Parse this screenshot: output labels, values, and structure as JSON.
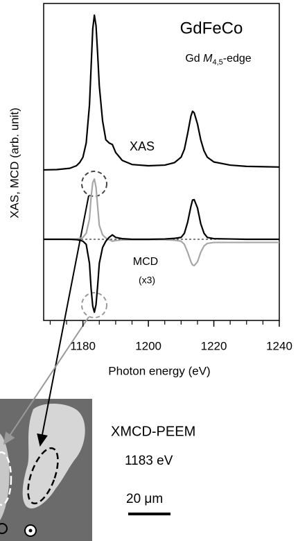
{
  "chart_data": {
    "type": "line",
    "title": "GdFeCo",
    "edge_label": {
      "element": "Gd ",
      "symbol": "M",
      "subscript": "4,5",
      "suffix": "-edge"
    },
    "annotations": [
      "XAS",
      "MCD",
      "(x3)"
    ],
    "xlabel": "Photon energy (eV)",
    "ylabel": "XAS, MCD (arb. unit)",
    "xlim": [
      1168,
      1240
    ],
    "xticks": [
      1180,
      1200,
      1220,
      1240
    ],
    "xminor_ticks": [
      1170,
      1175,
      1185,
      1190,
      1195,
      1205,
      1210,
      1215,
      1225,
      1230,
      1235
    ],
    "ylim": [
      0,
      10
    ],
    "mcd_zero_line": 2.56,
    "x": [
      1168,
      1172,
      1176,
      1178,
      1179,
      1180,
      1181,
      1182,
      1182.5,
      1183,
      1183.5,
      1184,
      1184.5,
      1185,
      1186,
      1187,
      1188,
      1189,
      1190,
      1192,
      1195,
      1200,
      1205,
      1208,
      1210,
      1211,
      1212,
      1213,
      1213.5,
      1214,
      1215,
      1216,
      1217,
      1218,
      1220,
      1225,
      1230,
      1240
    ],
    "series": [
      {
        "color": "#000000",
        "values": [
          4.75,
          4.76,
          4.8,
          4.88,
          4.98,
          5.15,
          5.6,
          6.8,
          8.0,
          9.2,
          9.63,
          9.3,
          8.4,
          7.4,
          6.3,
          5.7,
          5.6,
          5.55,
          5.3,
          5.05,
          4.92,
          4.88,
          4.9,
          4.98,
          5.15,
          5.4,
          5.9,
          6.45,
          6.6,
          6.55,
          6.2,
          5.7,
          5.35,
          5.15,
          5.0,
          4.9,
          4.86,
          4.84
        ]
      },
      {
        "color": "#a6a6a6",
        "values": [
          2.56,
          2.56,
          2.56,
          2.57,
          2.59,
          2.62,
          2.75,
          3.2,
          3.9,
          4.35,
          4.46,
          4.2,
          3.6,
          3.0,
          2.7,
          2.6,
          2.55,
          2.5,
          2.52,
          2.54,
          2.55,
          2.55,
          2.55,
          2.53,
          2.5,
          2.4,
          2.15,
          1.85,
          1.75,
          1.73,
          1.85,
          2.15,
          2.35,
          2.43,
          2.46,
          2.46,
          2.46,
          2.46
        ]
      },
      {
        "color": "#000000",
        "values": [
          2.56,
          2.56,
          2.56,
          2.55,
          2.53,
          2.5,
          2.4,
          1.8,
          1.0,
          0.45,
          0.26,
          0.5,
          1.1,
          1.8,
          2.3,
          2.5,
          2.62,
          2.7,
          2.62,
          2.58,
          2.56,
          2.56,
          2.57,
          2.59,
          2.62,
          2.75,
          3.1,
          3.6,
          3.8,
          3.81,
          3.55,
          3.05,
          2.75,
          2.62,
          2.58,
          2.57,
          2.56,
          2.56
        ]
      }
    ],
    "inset": {
      "title": "XMCD-PEEM",
      "energy": "1183 eV",
      "scale": "20 μm"
    }
  }
}
